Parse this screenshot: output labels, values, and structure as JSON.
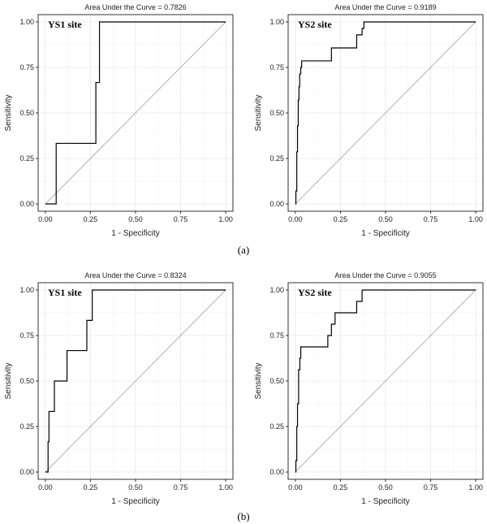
{
  "figure_labels": [
    "(a)",
    "(b)"
  ],
  "chart_data": [
    {
      "type": "line",
      "title": "Area Under the Curve = 0.7826",
      "annotation": "YS1 site",
      "xlabel": "1 - Specificity",
      "ylabel": "Sensitivity",
      "xlim": [
        0,
        1
      ],
      "ylim": [
        0,
        1
      ],
      "xticks": [
        "0.00",
        "0.25",
        "0.50",
        "0.75",
        "1.00"
      ],
      "yticks": [
        "0.00",
        "0.25",
        "0.50",
        "0.75",
        "1.00"
      ],
      "grid": true,
      "curve": {
        "x": [
          0,
          0.06,
          0.06,
          0.28,
          0.28,
          0.3,
          0.3,
          1.0
        ],
        "y": [
          0,
          0,
          0.333,
          0.333,
          0.667,
          0.667,
          1.0,
          1.0
        ]
      },
      "reference_line": {
        "x": [
          0,
          1
        ],
        "y": [
          0,
          1
        ]
      }
    },
    {
      "type": "line",
      "title": "Area Under the Curve = 0.9189",
      "annotation": "YS2 site",
      "xlabel": "1 - Specificity",
      "ylabel": "Sensitivity",
      "xlim": [
        0,
        1
      ],
      "ylim": [
        0,
        1
      ],
      "xticks": [
        "0.00",
        "0.25",
        "0.50",
        "0.75",
        "1.00"
      ],
      "yticks": [
        "0.00",
        "0.25",
        "0.50",
        "0.75",
        "1.00"
      ],
      "grid": true,
      "curve": {
        "x": [
          0,
          0.003,
          0.003,
          0.008,
          0.008,
          0.012,
          0.012,
          0.016,
          0.016,
          0.02,
          0.02,
          0.024,
          0.024,
          0.03,
          0.03,
          0.035,
          0.035,
          0.04,
          0.04,
          0.2,
          0.2,
          0.34,
          0.34,
          0.37,
          0.37,
          0.38,
          0.38,
          1.0
        ],
        "y": [
          0,
          0,
          0.071,
          0.071,
          0.286,
          0.286,
          0.429,
          0.429,
          0.571,
          0.571,
          0.643,
          0.643,
          0.714,
          0.714,
          0.75,
          0.75,
          0.786,
          0.786,
          0.786,
          0.786,
          0.857,
          0.857,
          0.929,
          0.929,
          0.964,
          0.964,
          1.0,
          1.0
        ]
      },
      "reference_line": {
        "x": [
          0,
          1
        ],
        "y": [
          0,
          1
        ]
      }
    },
    {
      "type": "line",
      "title": "Area Under the Curve = 0.8324",
      "annotation": "YS1 site",
      "xlabel": "1 - Specificity",
      "ylabel": "Sensitivity",
      "xlim": [
        0,
        1
      ],
      "ylim": [
        0,
        1
      ],
      "xticks": [
        "0.00",
        "0.25",
        "0.50",
        "0.75",
        "1.00"
      ],
      "yticks": [
        "0.00",
        "0.25",
        "0.50",
        "0.75",
        "1.00"
      ],
      "grid": true,
      "curve": {
        "x": [
          0,
          0.015,
          0.015,
          0.02,
          0.02,
          0.05,
          0.05,
          0.12,
          0.12,
          0.23,
          0.23,
          0.26,
          0.26,
          0.29,
          0.29,
          1.0
        ],
        "y": [
          0,
          0,
          0.167,
          0.167,
          0.333,
          0.333,
          0.5,
          0.5,
          0.667,
          0.667,
          0.833,
          0.833,
          1.0,
          1.0,
          1.0,
          1.0
        ]
      },
      "reference_line": {
        "x": [
          0,
          1
        ],
        "y": [
          0,
          1
        ]
      }
    },
    {
      "type": "line",
      "title": "Area Under the Curve = 0.9055",
      "annotation": "YS2 site",
      "xlabel": "1 - Specificity",
      "ylabel": "Sensitivity",
      "xlim": [
        0,
        1
      ],
      "ylim": [
        0,
        1
      ],
      "xticks": [
        "0.00",
        "0.25",
        "0.50",
        "0.75",
        "1.00"
      ],
      "yticks": [
        "0.00",
        "0.25",
        "0.50",
        "0.75",
        "1.00"
      ],
      "grid": true,
      "curve": {
        "x": [
          0,
          0.003,
          0.003,
          0.008,
          0.008,
          0.012,
          0.012,
          0.018,
          0.018,
          0.025,
          0.025,
          0.03,
          0.03,
          0.035,
          0.035,
          0.18,
          0.18,
          0.2,
          0.2,
          0.22,
          0.22,
          0.34,
          0.34,
          0.37,
          0.37,
          1.0
        ],
        "y": [
          0,
          0,
          0.0625,
          0.0625,
          0.25,
          0.25,
          0.375,
          0.375,
          0.5625,
          0.5625,
          0.625,
          0.625,
          0.6875,
          0.6875,
          0.6875,
          0.6875,
          0.75,
          0.75,
          0.8125,
          0.8125,
          0.875,
          0.875,
          0.9375,
          0.9375,
          1.0,
          1.0
        ]
      },
      "reference_line": {
        "x": [
          0,
          1
        ],
        "y": [
          0,
          1
        ]
      }
    }
  ]
}
